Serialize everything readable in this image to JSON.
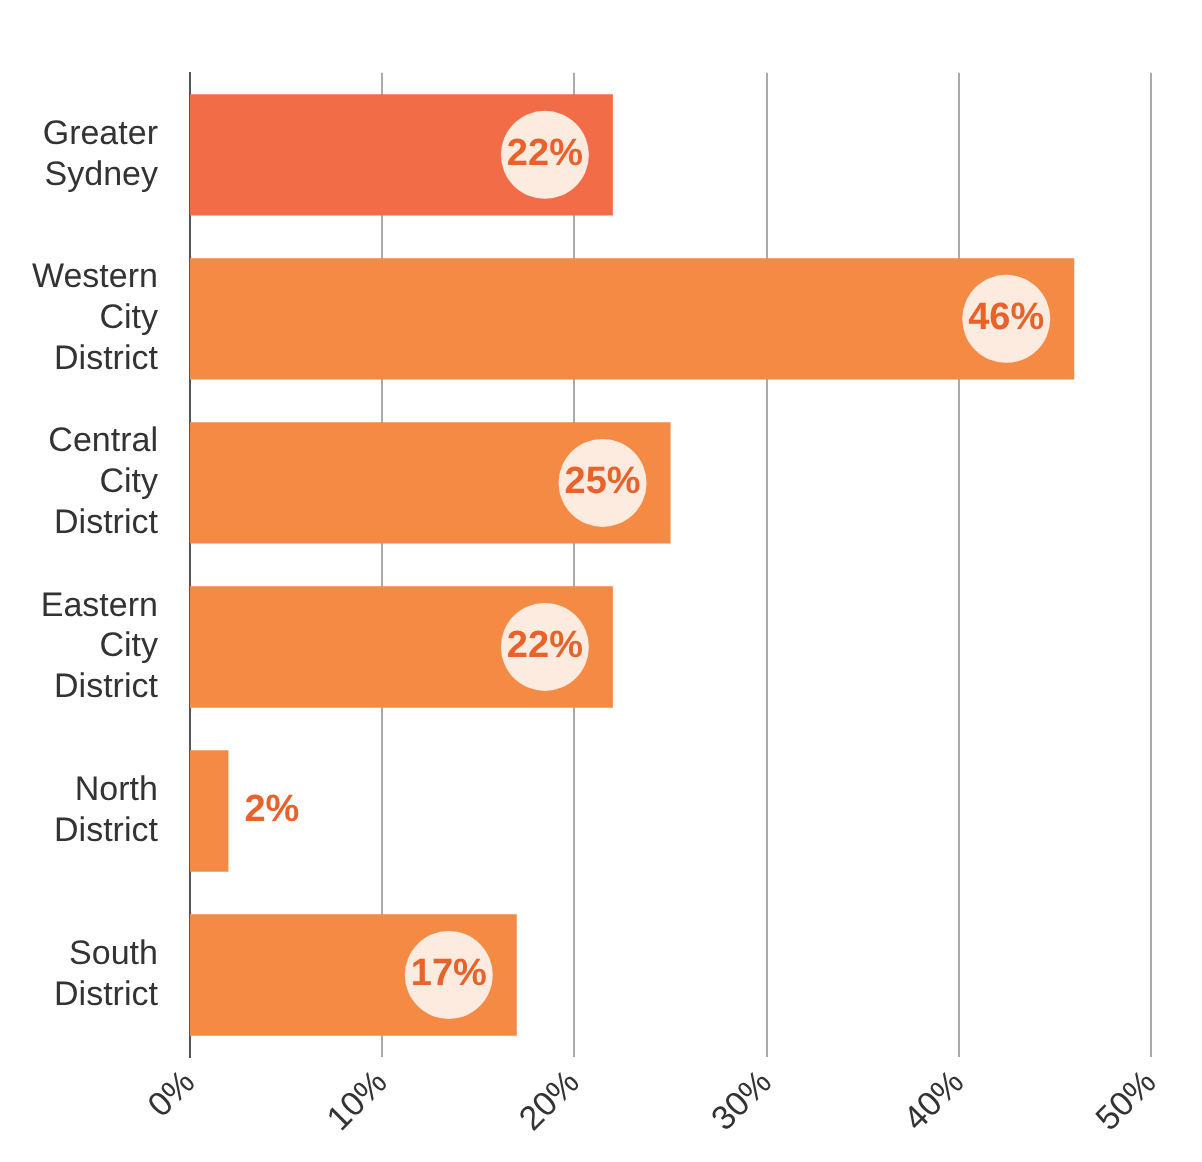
{
  "chart_data": {
    "type": "bar",
    "orientation": "horizontal",
    "categories": [
      "Greater Sydney",
      "Western City District",
      "Central City District",
      "Eastern City District",
      "North District",
      "South District"
    ],
    "values": [
      22,
      46,
      25,
      22,
      2,
      17
    ],
    "colors": [
      "#f26c47",
      "#f58a45",
      "#f58a45",
      "#f58a45",
      "#f58a45",
      "#f58a45"
    ],
    "value_labels": [
      "22%",
      "46%",
      "25%",
      "22%",
      "2%",
      "17%"
    ],
    "xlim": [
      0,
      50
    ],
    "xticks": [
      {
        "value": 0,
        "label": "0%"
      },
      {
        "value": 10,
        "label": "10%"
      },
      {
        "value": 20,
        "label": "20%"
      },
      {
        "value": 30,
        "label": "30%"
      },
      {
        "value": 40,
        "label": "40%"
      },
      {
        "value": 50,
        "label": "50%"
      }
    ],
    "grid": "x",
    "legend": false
  }
}
